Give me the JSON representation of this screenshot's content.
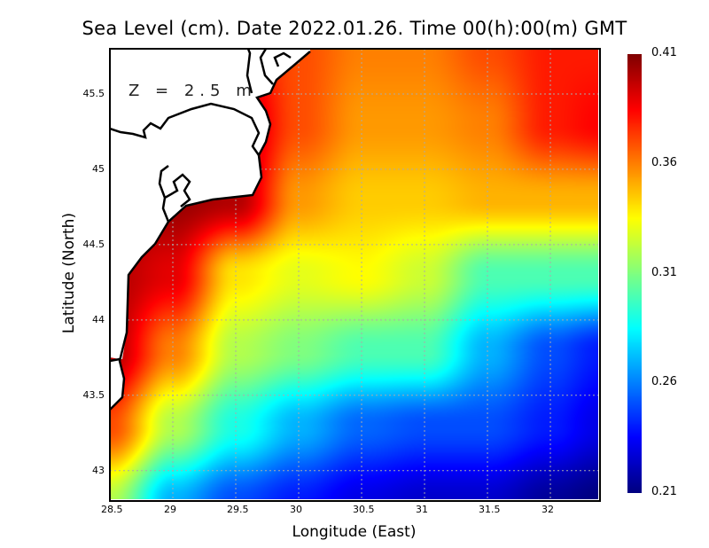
{
  "title": "Sea Level (cm). Date 2022.01.26. Time 00(h):00(m) GMT",
  "depth_label": "Z = 2.5 m",
  "chart_data": {
    "type": "heatmap",
    "title": "Sea Level (cm). Date 2022.01.26. Time 00(h):00(m) GMT",
    "xlabel": "Longitude (East)",
    "ylabel": "Latitude (North)",
    "xlim": [
      28.5,
      32.38
    ],
    "ylim": [
      42.81,
      45.8
    ],
    "x_ticks": [
      "28.5",
      "29",
      "29.5",
      "30",
      "30.5",
      "31",
      "31.5",
      "32"
    ],
    "x_tick_values": [
      28.5,
      29,
      29.5,
      30,
      30.5,
      31,
      31.5,
      32
    ],
    "y_ticks": [
      "45.5",
      "45",
      "44.5",
      "44",
      "43.5",
      "43"
    ],
    "y_tick_values": [
      45.5,
      45,
      44.5,
      44,
      43.5,
      43
    ],
    "grid": true,
    "colorbar": {
      "min": 0.21,
      "max": 0.41,
      "ticks": [
        "0.41",
        "0.36",
        "0.31",
        "0.26",
        "0.21"
      ],
      "tick_values": [
        0.41,
        0.36,
        0.31,
        0.26,
        0.21
      ],
      "colormap": "jet"
    },
    "grid_lon": [
      28.5,
      29,
      29.5,
      30,
      30.5,
      31,
      31.5,
      32,
      32.4
    ],
    "grid_lat": [
      45.8,
      45.3,
      44.8,
      44.3,
      43.8,
      43.3,
      42.8
    ],
    "values": [
      [
        null,
        null,
        null,
        0.37,
        0.36,
        0.36,
        0.37,
        0.38,
        0.38
      ],
      [
        null,
        null,
        0.4,
        0.37,
        0.355,
        0.355,
        0.36,
        0.38,
        0.385
      ],
      [
        null,
        0.405,
        0.4,
        0.355,
        0.345,
        0.345,
        0.35,
        0.35,
        0.35
      ],
      [
        0.4,
        0.39,
        0.34,
        0.33,
        0.335,
        0.325,
        0.3,
        0.3,
        0.3
      ],
      [
        0.4,
        0.36,
        0.32,
        0.31,
        0.3,
        0.3,
        0.27,
        0.25,
        0.24
      ],
      [
        0.37,
        0.32,
        0.29,
        0.27,
        0.255,
        0.25,
        0.25,
        0.24,
        0.23
      ],
      [
        0.32,
        0.27,
        0.25,
        0.24,
        0.23,
        0.225,
        0.225,
        0.215,
        0.21
      ]
    ]
  }
}
